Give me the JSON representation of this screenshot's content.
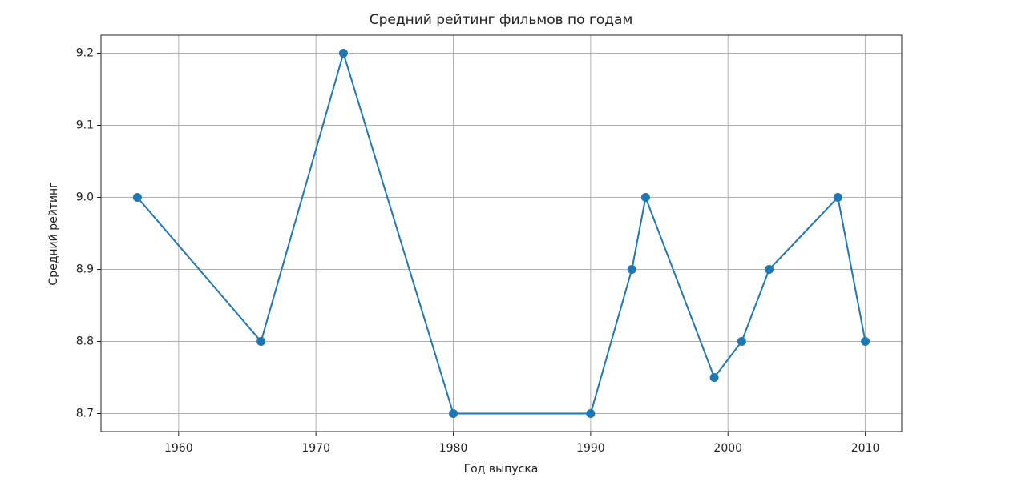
{
  "chart_data": {
    "type": "line",
    "title": "Средний рейтинг фильмов по годам",
    "x_label": "Год выпуска",
    "y_label": "Средний рейтинг",
    "x": [
      1957,
      1966,
      1972,
      1980,
      1990,
      1993,
      1994,
      1999,
      2001,
      2003,
      2008,
      2010
    ],
    "series": [
      {
        "color": "#1f77b4",
        "values": [
          9.0,
          8.8,
          9.2,
          8.7,
          8.7,
          8.9,
          9.0,
          8.75,
          8.8,
          8.9,
          9.0,
          8.8
        ]
      }
    ],
    "xlim": [
      1954.35,
      2012.65
    ],
    "xticks": [
      1960,
      1970,
      1980,
      1990,
      2000,
      2010
    ],
    "ylim": [
      8.675,
      9.225
    ],
    "yticks": [
      8.7,
      8.8,
      8.9,
      {
        "value": 9,
        "label": "9.0"
      },
      9.1,
      9.2
    ],
    "grid": true,
    "markers": true
  }
}
